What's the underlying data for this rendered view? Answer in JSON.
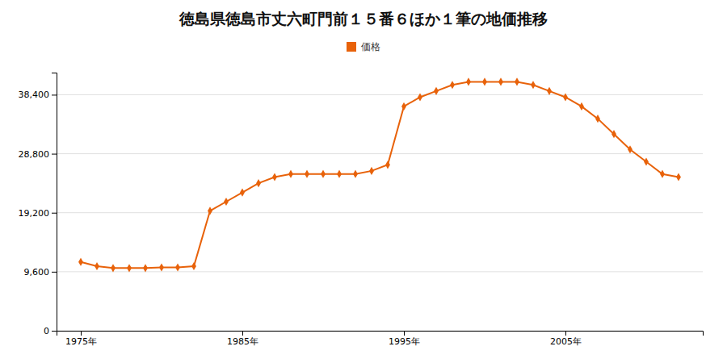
{
  "chart_data": {
    "type": "line",
    "title": "徳島県徳島市丈六町門前１５番６ほか１筆の地価推移",
    "x": [
      1975,
      1976,
      1977,
      1978,
      1979,
      1980,
      1981,
      1982,
      1983,
      1984,
      1985,
      1986,
      1987,
      1988,
      1989,
      1990,
      1991,
      1992,
      1993,
      1994,
      1995,
      1996,
      1997,
      1998,
      1999,
      2000,
      2001,
      2002,
      2003,
      2004,
      2005,
      2006,
      2007,
      2008,
      2009,
      2010,
      2011,
      2012
    ],
    "series": [
      {
        "name": "価格",
        "color": "#e8620a",
        "marker": "diamond",
        "line_style": "solid",
        "values": [
          11200,
          10500,
          10200,
          10200,
          10200,
          10300,
          10300,
          10500,
          19500,
          21000,
          22500,
          24000,
          25000,
          25500,
          25500,
          25500,
          25500,
          25500,
          26000,
          27000,
          36500,
          38000,
          39000,
          40000,
          40500,
          40500,
          40500,
          40500,
          40000,
          39000,
          38000,
          36500,
          34500,
          32000,
          29500,
          27500,
          25500,
          25000
        ]
      }
    ],
    "xlim": [
      1973.5,
      2013.5
    ],
    "xticks": [
      {
        "value": 1975,
        "label": "1975年"
      },
      {
        "value": 1985,
        "label": "1985年"
      },
      {
        "value": 1995,
        "label": "1995年"
      },
      {
        "value": 2005,
        "label": "2005年"
      }
    ],
    "ylim": [
      0,
      42000
    ],
    "yticks": [
      0,
      {
        "value": 9600,
        "label": "9,600"
      },
      {
        "value": 19200,
        "label": "19,200"
      },
      {
        "value": 28800,
        "label": "28,800"
      },
      {
        "value": 38400,
        "label": "38,400"
      }
    ],
    "grid": true,
    "legend": "top"
  }
}
